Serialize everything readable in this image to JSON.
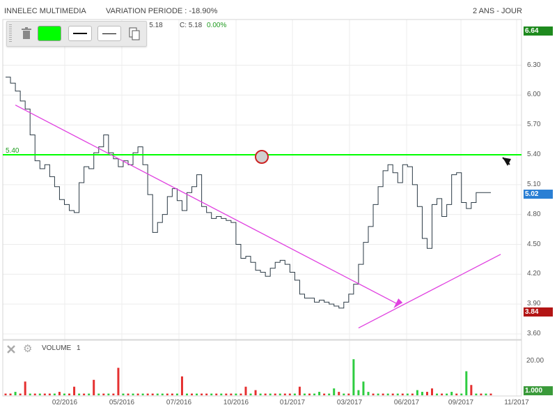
{
  "header": {
    "instrument": "INNELEC MULTIMEDIA",
    "variation": "VARIATION PERIODE : -18.90%",
    "timeframe": "2 ANS - JOUR"
  },
  "ohlc_readout": {
    "value_b": "B: 5.18",
    "close_label": "C: 5.18",
    "change": "0.00%"
  },
  "toolbar": {
    "icons": [
      "trash-icon",
      "color-swatch",
      "line-thick-icon",
      "line-thin-icon",
      "copy-icon"
    ],
    "swatch_color": "#00ff00"
  },
  "colors": {
    "price_line": "#2b3a45",
    "trend_line": "#e040e0",
    "horizontal_line": "#00ff00",
    "vol_up": "#2ecc40",
    "vol_down": "#e53030",
    "box_green": "#1e8a1e",
    "box_blue": "#2a7fd4",
    "box_red": "#b31515",
    "box_gray_green": "#3a9a3a"
  },
  "price_boxes": {
    "top": "6.64",
    "last": "5.02",
    "low": "3.84",
    "hline": "5.40"
  },
  "volume_panel": {
    "label": "VOLUME",
    "period": "1",
    "tick": "20.00",
    "last_box": "1.000"
  },
  "chart_data": {
    "type": "line",
    "title": "INNELEC MULTIMEDIA",
    "yticks": [
      "3.60",
      "3.90",
      "4.20",
      "4.50",
      "4.80",
      "5.10",
      "5.40",
      "5.70",
      "6.00",
      "6.30"
    ],
    "ylim": [
      3.6,
      6.64
    ],
    "xticks": [
      "02/2016",
      "05/2016",
      "07/2016",
      "10/2016",
      "01/2017",
      "03/2017",
      "06/2017",
      "09/2017",
      "11/2017"
    ],
    "grid": true,
    "x_index_range": [
      0,
      100
    ],
    "close": [
      6.18,
      6.12,
      6.04,
      5.94,
      5.86,
      5.6,
      5.34,
      5.26,
      5.3,
      5.18,
      5.08,
      4.95,
      4.9,
      4.84,
      4.82,
      5.12,
      5.28,
      5.26,
      5.42,
      5.48,
      5.6,
      5.42,
      5.36,
      5.28,
      5.34,
      5.3,
      5.42,
      5.48,
      5.3,
      5.0,
      4.62,
      4.72,
      4.8,
      4.98,
      5.06,
      4.94,
      4.84,
      5.02,
      5.08,
      5.2,
      4.88,
      4.82,
      4.76,
      4.78,
      4.76,
      4.74,
      4.72,
      4.5,
      4.36,
      4.38,
      4.32,
      4.24,
      4.22,
      4.18,
      4.26,
      4.32,
      4.34,
      4.3,
      4.22,
      4.14,
      4.0,
      3.96,
      3.96,
      3.92,
      3.94,
      3.92,
      3.9,
      3.88,
      3.86,
      3.92,
      4.0,
      4.1,
      4.3,
      4.52,
      4.68,
      4.9,
      5.08,
      5.24,
      5.3,
      5.22,
      5.12,
      5.3,
      5.28,
      5.1,
      4.88,
      4.56,
      4.46,
      4.9,
      4.96,
      4.78,
      4.9,
      5.2,
      5.22,
      4.92,
      4.86,
      4.92,
      5.02,
      5.02,
      5.02,
      5.02
    ],
    "volume_ylim": [
      0,
      28
    ],
    "volume": [
      1,
      1,
      2,
      1,
      8,
      1,
      1,
      1,
      1,
      1,
      1,
      2,
      1,
      1,
      5,
      1,
      1,
      1,
      9,
      1,
      1,
      1,
      1,
      16,
      1,
      1,
      1,
      1,
      1,
      1,
      1,
      1,
      1,
      1,
      1,
      1,
      11,
      1,
      1,
      1,
      1,
      1,
      1,
      1,
      1,
      1,
      1,
      1,
      1,
      5,
      1,
      3,
      1,
      1,
      1,
      1,
      1,
      1,
      1,
      1,
      5,
      1,
      1,
      1,
      2,
      1,
      1,
      4,
      2,
      1,
      1,
      21,
      3,
      8,
      2,
      1,
      1,
      1,
      1,
      1,
      1,
      1,
      1,
      1,
      3,
      2,
      2,
      4,
      1,
      1,
      1,
      2,
      1,
      1,
      14,
      6,
      1,
      1,
      1,
      1
    ],
    "volume_color": [
      "d",
      "d",
      "u",
      "d",
      "d",
      "u",
      "d",
      "u",
      "d",
      "d",
      "u",
      "d",
      "u",
      "d",
      "d",
      "u",
      "d",
      "u",
      "d",
      "u",
      "d",
      "u",
      "d",
      "d",
      "u",
      "d",
      "u",
      "d",
      "u",
      "d",
      "d",
      "u",
      "u",
      "d",
      "d",
      "u",
      "d",
      "u",
      "d",
      "u",
      "d",
      "d",
      "u",
      "d",
      "u",
      "d",
      "d",
      "u",
      "d",
      "d",
      "u",
      "d",
      "u",
      "d",
      "u",
      "d",
      "u",
      "d",
      "d",
      "u",
      "d",
      "u",
      "d",
      "u",
      "u",
      "d",
      "u",
      "u",
      "d",
      "u",
      "d",
      "u",
      "u",
      "u",
      "u",
      "d",
      "u",
      "d",
      "u",
      "d",
      "u",
      "d",
      "u",
      "d",
      "u",
      "u",
      "d",
      "d",
      "u",
      "d",
      "u",
      "u",
      "d",
      "u",
      "u",
      "d",
      "u",
      "d",
      "u",
      "d"
    ],
    "drawings": {
      "horizontal_line": {
        "y": 5.4
      },
      "trend_down": {
        "x1": 2,
        "y1": 5.9,
        "x2": 80,
        "y2": 3.9
      },
      "trend_up": {
        "x1": 72,
        "y1": 3.66,
        "x2": 101,
        "y2": 4.4
      }
    }
  }
}
